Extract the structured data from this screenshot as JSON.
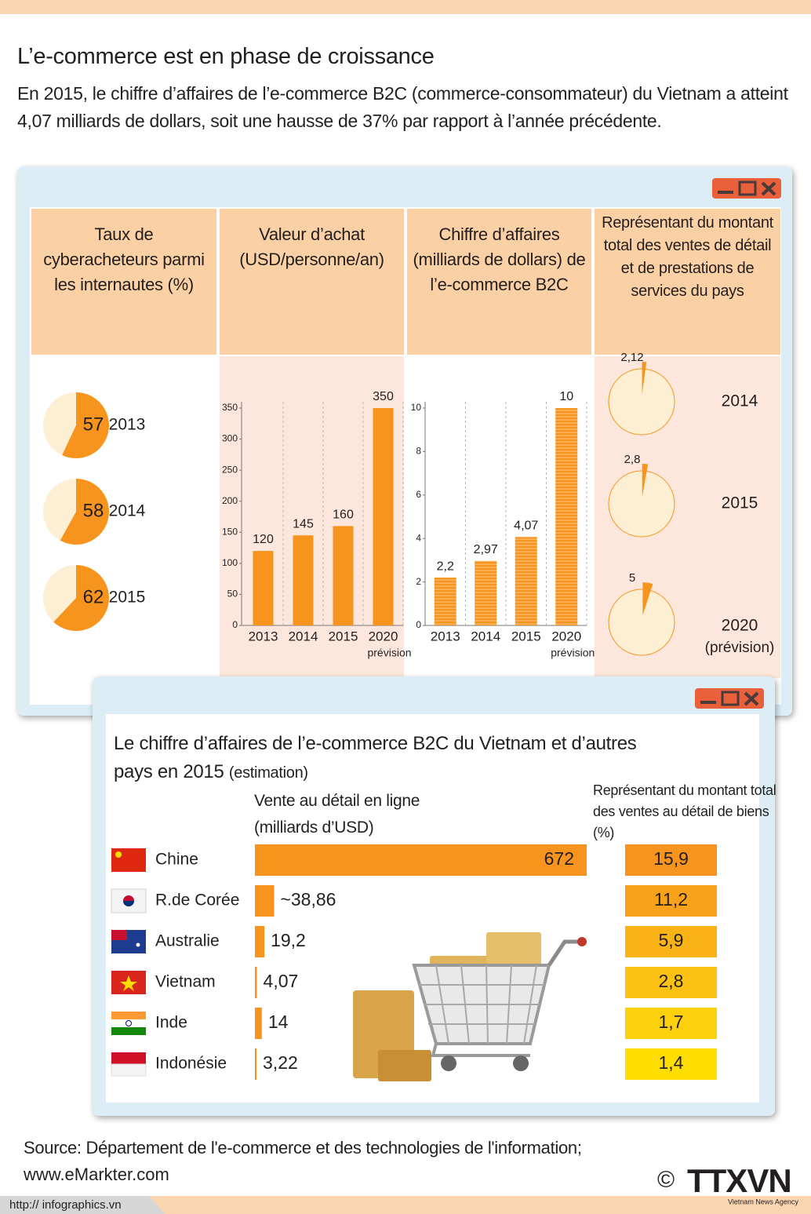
{
  "header": {
    "title": "L’e-commerce est en phase de croissance",
    "intro": "En 2015, le chiffre d’affaires de l’e-commerce B2C (commerce-consommateur) du Vietnam a atteint 4,07 milliards de dollars, soit une hausse de 37% par rapport à l’année précédente."
  },
  "chart_data": [
    {
      "type": "pie",
      "title": "Taux de cyberacheteurs parmi les internautes (%)",
      "categories": [
        "2013",
        "2014",
        "2015"
      ],
      "values": [
        57,
        58,
        62
      ],
      "color": "#f7941d",
      "track_color": "#fdefd3"
    },
    {
      "type": "bar",
      "title": "Valeur d’achat (USD/personne/an)",
      "categories": [
        "2013",
        "2014",
        "2015",
        "2020"
      ],
      "category_notes": [
        null,
        null,
        null,
        "prévision"
      ],
      "values": [
        120,
        145,
        160,
        350
      ],
      "color": "#f7941d",
      "ylim": [
        0,
        350
      ],
      "yticks": [
        0,
        50,
        100,
        150,
        200,
        250,
        300,
        350
      ]
    },
    {
      "type": "bar",
      "title": "Chiffre d’affaires (milliards de dollars) de l’e-commerce B2C",
      "categories": [
        "2013",
        "2014",
        "2015",
        "2020"
      ],
      "category_notes": [
        null,
        null,
        null,
        "prévision"
      ],
      "values": [
        2.2,
        2.97,
        4.07,
        10
      ],
      "value_labels": [
        "2,2",
        "2,97",
        "4,07",
        "10"
      ],
      "color": "#f7941d",
      "ylim": [
        0,
        10
      ],
      "yticks": [
        0,
        2,
        4,
        6,
        8,
        10
      ]
    },
    {
      "type": "pie",
      "title": "Représentant du montant total des ventes de détail et de prestations de services du pays",
      "categories": [
        "2014",
        "2015",
        "2020"
      ],
      "category_notes": [
        null,
        null,
        "(prévision)"
      ],
      "values": [
        2.12,
        2.8,
        5
      ],
      "value_labels": [
        "2,12",
        "2,8",
        "5"
      ],
      "color": "#f7941d",
      "track_color": "#fdefd3"
    },
    {
      "type": "hbar",
      "title": "Le chiffre d’affaires de l’e-commerce B2C du Vietnam et d’autres pays en 2015",
      "subtitle": "(estimation)",
      "categories": [
        "Chine",
        "R.de Corée",
        "Australie",
        "Vietnam",
        "Inde",
        "Indonésie"
      ],
      "xlim": [
        0,
        672
      ],
      "series": [
        {
          "name": "Vente au détail en ligne (milliards d’USD)",
          "color": "#f7941d",
          "values": [
            672,
            38.86,
            19.2,
            4.07,
            14,
            3.22
          ],
          "value_labels": [
            "672",
            "~38,86",
            "19,2",
            "4,07",
            "14",
            "3,22"
          ]
        },
        {
          "name": "Représentant du montant total des ventes au détail de biens (%)",
          "colors": [
            "#f7941d",
            "#f8a21a",
            "#fab317",
            "#fcc213",
            "#fdd00e",
            "#ffdd00"
          ],
          "values": [
            15.9,
            11.2,
            5.9,
            2.8,
            1.7,
            1.4
          ],
          "value_labels": [
            "15,9",
            "11,2",
            "5,9",
            "2,8",
            "1,7",
            "1,4"
          ]
        }
      ]
    }
  ],
  "source": {
    "text": "Source: Département de l'e-commerce et des technologies de l'information;",
    "url": "www.eMarkter.com"
  },
  "footer": {
    "site": "http:// infographics.vn",
    "copyright": "©",
    "logo": "TTXVN",
    "agency": "Vietnam News Agency"
  }
}
